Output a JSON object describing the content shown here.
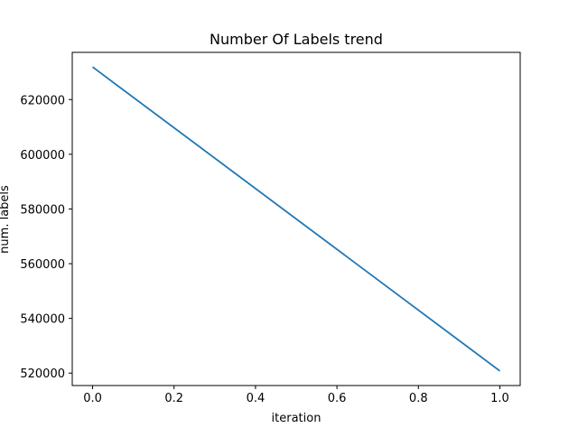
{
  "chart_data": {
    "type": "line",
    "title": "Number Of Labels trend",
    "xlabel": "iteration",
    "ylabel": "num. labels",
    "xlim": [
      -0.05,
      1.05
    ],
    "ylim": [
      515450,
      637250
    ],
    "x_ticks": [
      0.0,
      0.2,
      0.4,
      0.6,
      0.8,
      1.0
    ],
    "x_tick_labels": [
      "0.0",
      "0.2",
      "0.4",
      "0.6",
      "0.8",
      "1.0"
    ],
    "y_ticks": [
      520000,
      540000,
      560000,
      580000,
      600000,
      620000
    ],
    "y_tick_labels": [
      "520000",
      "540000",
      "560000",
      "580000",
      "600000",
      "620000"
    ],
    "grid": false,
    "series": [
      {
        "color": "#1f77b4",
        "x": [
          0,
          1
        ],
        "y": [
          631900,
          520800
        ]
      }
    ]
  }
}
